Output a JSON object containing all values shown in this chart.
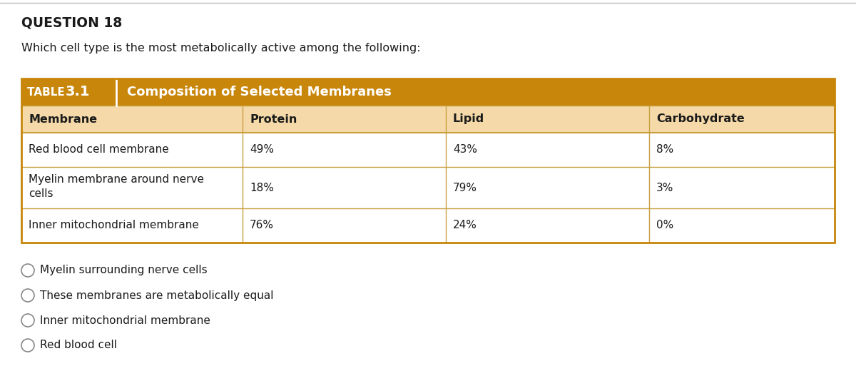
{
  "question_label": "QUESTION 18",
  "question_text": "Which cell type is the most metabolically active among the following:",
  "table_label_bold": "TABLE ",
  "table_label_num": "3.1",
  "table_title": "Composition of Selected Membranes",
  "col_headers": [
    "Membrane",
    "Protein",
    "Lipid",
    "Carbohydrate"
  ],
  "rows": [
    [
      "Red blood cell membrane",
      "49%",
      "43%",
      "8%"
    ],
    [
      "Myelin membrane around nerve\ncells",
      "18%",
      "79%",
      "3%"
    ],
    [
      "Inner mitochondrial membrane",
      "76%",
      "24%",
      "0%"
    ]
  ],
  "options": [
    "Myelin surrounding nerve cells",
    "These membranes are metabolically equal",
    "Inner mitochondrial membrane",
    "Red blood cell"
  ],
  "header_bg": "#C8860A",
  "header_text_color": "#FFFFFF",
  "subheader_bg": "#F5D9A8",
  "table_border_top_color": "#C8860A",
  "table_border_bottom_color": "#C8860A",
  "row_line_color": "#C8A040",
  "bg_color": "#FFFFFF",
  "question_label_color": "#1a1a1a",
  "question_text_color": "#1a1a1a",
  "option_text_color": "#1a1a1a",
  "cell_text_color": "#1a1a1a",
  "top_border_color": "#BBBBBB",
  "figsize": [
    12.0,
    5.41
  ],
  "dpi": 100
}
